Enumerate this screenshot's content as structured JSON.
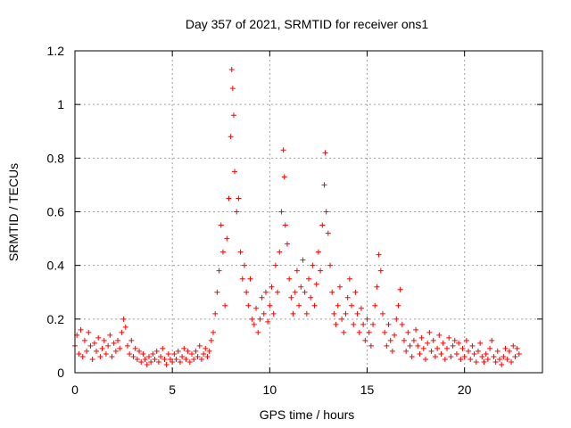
{
  "chart_data": {
    "type": "scatter",
    "title": "Day 357 of 2021, SRMTID for receiver ons1",
    "xlabel": "GPS time / hours",
    "ylabel": "SRMTID / TECUs",
    "xlim": [
      0,
      24
    ],
    "ylim": [
      0,
      1.2
    ],
    "xticks": [
      0,
      5,
      10,
      15,
      20
    ],
    "yticks": [
      0,
      0.2,
      0.4,
      0.6,
      0.8,
      1,
      1.2
    ],
    "xtick_labels": [
      "0",
      "5",
      "10",
      "15",
      "20"
    ],
    "ytick_labels": [
      "0",
      "0.2",
      "0.4",
      "0.6",
      "0.8",
      "1",
      "1.2"
    ],
    "grid": true,
    "marker": "+",
    "series_color": "#ff0000",
    "series": [
      {
        "name": "ons1",
        "points": [
          [
            0.0,
            0.1
          ],
          [
            0.1,
            0.14
          ],
          [
            0.2,
            0.07
          ],
          [
            0.3,
            0.16
          ],
          [
            0.4,
            0.06
          ],
          [
            0.5,
            0.12
          ],
          [
            0.6,
            0.08
          ],
          [
            0.7,
            0.15
          ],
          [
            0.8,
            0.1
          ],
          [
            0.9,
            0.05
          ],
          [
            1.0,
            0.11
          ],
          [
            1.1,
            0.08
          ],
          [
            1.2,
            0.13
          ],
          [
            1.3,
            0.06
          ],
          [
            1.4,
            0.09
          ],
          [
            1.5,
            0.12
          ],
          [
            1.6,
            0.07
          ],
          [
            1.7,
            0.1
          ],
          [
            1.8,
            0.14
          ],
          [
            1.9,
            0.06
          ],
          [
            2.0,
            0.11
          ],
          [
            2.1,
            0.08
          ],
          [
            2.2,
            0.12
          ],
          [
            2.3,
            0.09
          ],
          [
            2.4,
            0.15
          ],
          [
            2.5,
            0.2
          ],
          [
            2.6,
            0.17
          ],
          [
            2.7,
            0.1
          ],
          [
            2.8,
            0.07
          ],
          [
            2.9,
            0.12
          ],
          [
            3.0,
            0.06
          ],
          [
            3.1,
            0.09
          ],
          [
            3.2,
            0.05
          ],
          [
            3.3,
            0.08
          ],
          [
            3.4,
            0.04
          ],
          [
            3.5,
            0.07
          ],
          [
            3.6,
            0.05
          ],
          [
            3.7,
            0.03
          ],
          [
            3.8,
            0.06
          ],
          [
            3.9,
            0.04
          ],
          [
            4.0,
            0.07
          ],
          [
            4.1,
            0.05
          ],
          [
            4.2,
            0.08
          ],
          [
            4.3,
            0.04
          ],
          [
            4.4,
            0.06
          ],
          [
            4.5,
            0.09
          ],
          [
            4.6,
            0.05
          ],
          [
            4.7,
            0.03
          ],
          [
            4.8,
            0.07
          ],
          [
            4.9,
            0.05
          ],
          [
            5.0,
            0.04
          ],
          [
            5.1,
            0.07
          ],
          [
            5.2,
            0.05
          ],
          [
            5.3,
            0.08
          ],
          [
            5.4,
            0.04
          ],
          [
            5.5,
            0.06
          ],
          [
            5.6,
            0.09
          ],
          [
            5.7,
            0.05
          ],
          [
            5.8,
            0.08
          ],
          [
            5.9,
            0.04
          ],
          [
            6.0,
            0.07
          ],
          [
            6.1,
            0.05
          ],
          [
            6.2,
            0.08
          ],
          [
            6.3,
            0.06
          ],
          [
            6.4,
            0.1
          ],
          [
            6.5,
            0.05
          ],
          [
            6.6,
            0.07
          ],
          [
            6.7,
            0.09
          ],
          [
            6.8,
            0.06
          ],
          [
            6.9,
            0.08
          ],
          [
            7.0,
            0.12
          ],
          [
            7.1,
            0.15
          ],
          [
            7.2,
            0.22
          ],
          [
            7.3,
            0.3
          ],
          [
            7.4,
            0.38
          ],
          [
            7.5,
            0.55
          ],
          [
            7.6,
            0.45
          ],
          [
            7.7,
            0.25
          ],
          [
            7.8,
            0.5
          ],
          [
            7.9,
            0.65
          ],
          [
            8.0,
            0.88
          ],
          [
            8.05,
            1.13
          ],
          [
            8.1,
            1.06
          ],
          [
            8.15,
            0.96
          ],
          [
            8.2,
            0.75
          ],
          [
            8.3,
            0.6
          ],
          [
            8.4,
            0.65
          ],
          [
            8.5,
            0.45
          ],
          [
            8.6,
            0.35
          ],
          [
            8.7,
            0.4
          ],
          [
            8.8,
            0.3
          ],
          [
            8.9,
            0.25
          ],
          [
            9.0,
            0.35
          ],
          [
            9.1,
            0.2
          ],
          [
            9.2,
            0.18
          ],
          [
            9.3,
            0.24
          ],
          [
            9.4,
            0.15
          ],
          [
            9.5,
            0.2
          ],
          [
            9.6,
            0.28
          ],
          [
            9.7,
            0.22
          ],
          [
            9.8,
            0.3
          ],
          [
            9.9,
            0.19
          ],
          [
            10.0,
            0.25
          ],
          [
            10.1,
            0.32
          ],
          [
            10.2,
            0.22
          ],
          [
            10.3,
            0.4
          ],
          [
            10.4,
            0.3
          ],
          [
            10.5,
            0.45
          ],
          [
            10.6,
            0.6
          ],
          [
            10.7,
            0.83
          ],
          [
            10.75,
            0.73
          ],
          [
            10.8,
            0.55
          ],
          [
            10.9,
            0.48
          ],
          [
            11.0,
            0.35
          ],
          [
            11.1,
            0.28
          ],
          [
            11.2,
            0.22
          ],
          [
            11.3,
            0.3
          ],
          [
            11.4,
            0.38
          ],
          [
            11.5,
            0.25
          ],
          [
            11.6,
            0.32
          ],
          [
            11.7,
            0.42
          ],
          [
            11.8,
            0.3
          ],
          [
            11.9,
            0.22
          ],
          [
            12.0,
            0.35
          ],
          [
            12.1,
            0.28
          ],
          [
            12.2,
            0.4
          ],
          [
            12.3,
            0.25
          ],
          [
            12.4,
            0.33
          ],
          [
            12.5,
            0.45
          ],
          [
            12.6,
            0.38
          ],
          [
            12.7,
            0.55
          ],
          [
            12.8,
            0.7
          ],
          [
            12.85,
            0.82
          ],
          [
            12.9,
            0.6
          ],
          [
            13.0,
            0.52
          ],
          [
            13.1,
            0.4
          ],
          [
            13.2,
            0.3
          ],
          [
            13.3,
            0.22
          ],
          [
            13.4,
            0.18
          ],
          [
            13.5,
            0.25
          ],
          [
            13.6,
            0.32
          ],
          [
            13.7,
            0.2
          ],
          [
            13.8,
            0.15
          ],
          [
            13.9,
            0.22
          ],
          [
            14.0,
            0.28
          ],
          [
            14.1,
            0.35
          ],
          [
            14.2,
            0.25
          ],
          [
            14.3,
            0.18
          ],
          [
            14.4,
            0.3
          ],
          [
            14.5,
            0.22
          ],
          [
            14.6,
            0.15
          ],
          [
            14.7,
            0.24
          ],
          [
            14.8,
            0.18
          ],
          [
            14.9,
            0.12
          ],
          [
            15.0,
            0.2
          ],
          [
            15.1,
            0.15
          ],
          [
            15.2,
            0.1
          ],
          [
            15.3,
            0.18
          ],
          [
            15.4,
            0.25
          ],
          [
            15.5,
            0.32
          ],
          [
            15.6,
            0.44
          ],
          [
            15.7,
            0.38
          ],
          [
            15.8,
            0.22
          ],
          [
            15.9,
            0.15
          ],
          [
            16.0,
            0.1
          ],
          [
            16.1,
            0.18
          ],
          [
            16.2,
            0.12
          ],
          [
            16.3,
            0.08
          ],
          [
            16.4,
            0.14
          ],
          [
            16.5,
            0.2
          ],
          [
            16.6,
            0.25
          ],
          [
            16.7,
            0.31
          ],
          [
            16.8,
            0.18
          ],
          [
            16.9,
            0.12
          ],
          [
            17.0,
            0.08
          ],
          [
            17.1,
            0.15
          ],
          [
            17.2,
            0.1
          ],
          [
            17.3,
            0.06
          ],
          [
            17.4,
            0.12
          ],
          [
            17.5,
            0.16
          ],
          [
            17.6,
            0.1
          ],
          [
            17.7,
            0.07
          ],
          [
            17.8,
            0.13
          ],
          [
            17.9,
            0.09
          ],
          [
            18.0,
            0.05
          ],
          [
            18.1,
            0.11
          ],
          [
            18.2,
            0.15
          ],
          [
            18.3,
            0.08
          ],
          [
            18.4,
            0.12
          ],
          [
            18.5,
            0.06
          ],
          [
            18.6,
            0.09
          ],
          [
            18.7,
            0.14
          ],
          [
            18.8,
            0.07
          ],
          [
            18.9,
            0.11
          ],
          [
            19.0,
            0.05
          ],
          [
            19.1,
            0.09
          ],
          [
            19.2,
            0.13
          ],
          [
            19.3,
            0.06
          ],
          [
            19.4,
            0.1
          ],
          [
            19.5,
            0.12
          ],
          [
            19.6,
            0.07
          ],
          [
            19.7,
            0.11
          ],
          [
            19.8,
            0.05
          ],
          [
            19.9,
            0.09
          ],
          [
            20.0,
            0.06
          ],
          [
            20.1,
            0.12
          ],
          [
            20.2,
            0.08
          ],
          [
            20.3,
            0.05
          ],
          [
            20.4,
            0.1
          ],
          [
            20.5,
            0.07
          ],
          [
            20.6,
            0.04
          ],
          [
            20.7,
            0.08
          ],
          [
            20.8,
            0.11
          ],
          [
            20.9,
            0.06
          ],
          [
            21.0,
            0.04
          ],
          [
            21.1,
            0.07
          ],
          [
            21.2,
            0.05
          ],
          [
            21.3,
            0.09
          ],
          [
            21.4,
            0.12
          ],
          [
            21.5,
            0.06
          ],
          [
            21.6,
            0.04
          ],
          [
            21.7,
            0.08
          ],
          [
            21.8,
            0.05
          ],
          [
            21.9,
            0.03
          ],
          [
            22.0,
            0.06
          ],
          [
            22.1,
            0.09
          ],
          [
            22.2,
            0.05
          ],
          [
            22.3,
            0.08
          ],
          [
            22.4,
            0.04
          ],
          [
            22.5,
            0.1
          ],
          [
            22.6,
            0.06
          ],
          [
            22.7,
            0.09
          ],
          [
            22.8,
            0.07
          ]
        ]
      }
    ]
  }
}
